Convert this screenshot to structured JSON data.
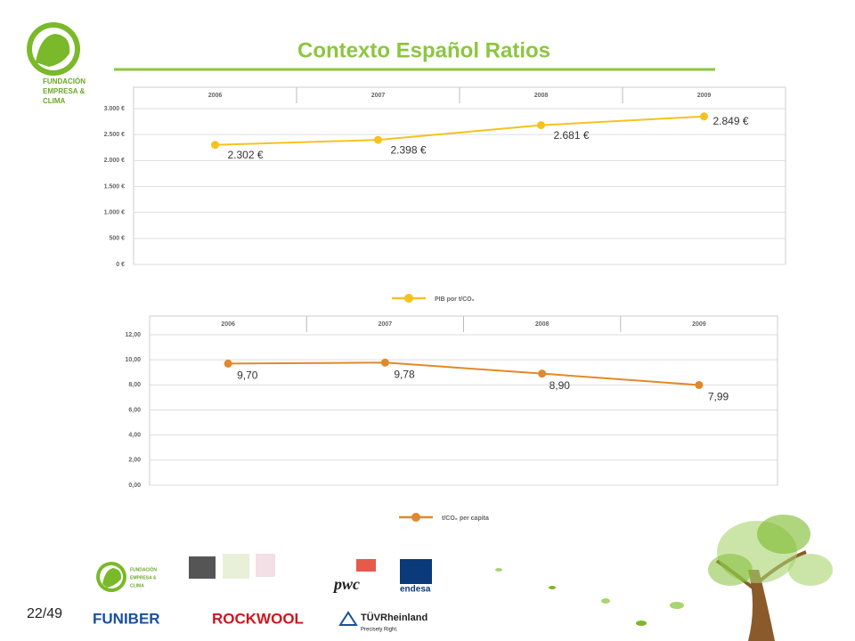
{
  "title": "Contexto Español Ratios",
  "page_number": "22/49",
  "logos": {
    "fundacion": [
      "FUNDACIÓN",
      "EMPRESA &",
      "CLIMA"
    ],
    "funiber": "FUNIBER",
    "rockwool": "ROCKWOOL",
    "pwc": "pwc",
    "endesa": "endesa",
    "tuv": "TÜVRheinland",
    "tuv_tagline": "Precisely Right."
  },
  "chart_data": [
    {
      "type": "line",
      "categories": [
        "2006",
        "2007",
        "2008",
        "2009"
      ],
      "series": [
        {
          "name": "PIB por t/CO₂",
          "color": "#f7c21e",
          "values": [
            2302,
            2398,
            2681,
            2849
          ],
          "value_labels": [
            "2.302 €",
            "2.398 €",
            "2.681 €",
            "2.849 €"
          ]
        }
      ],
      "ylim": [
        0,
        3000
      ],
      "yticks": [
        {
          "value": 0,
          "label": "0 €"
        },
        {
          "value": 500,
          "label": "500 €"
        },
        {
          "value": 1000,
          "label": "1.000 €"
        },
        {
          "value": 1500,
          "label": "1.500 €"
        },
        {
          "value": 2000,
          "label": "2.000 €"
        },
        {
          "value": 2500,
          "label": "2.500 €"
        },
        {
          "value": 3000,
          "label": "3.000 €"
        }
      ],
      "grid": true,
      "legend": "bottom"
    },
    {
      "type": "line",
      "categories": [
        "2006",
        "2007",
        "2008",
        "2009"
      ],
      "series": [
        {
          "name": "t/CO₂ per capita",
          "color": "#e0892b",
          "values": [
            9.7,
            9.78,
            8.9,
            7.99
          ],
          "value_labels": [
            "9,70",
            "9,78",
            "8,90",
            "7,99"
          ]
        }
      ],
      "ylim": [
        0,
        12
      ],
      "yticks": [
        {
          "value": 0,
          "label": "0,00"
        },
        {
          "value": 2,
          "label": "2,00"
        },
        {
          "value": 4,
          "label": "4,00"
        },
        {
          "value": 6,
          "label": "6,00"
        },
        {
          "value": 8,
          "label": "8,00"
        },
        {
          "value": 10,
          "label": "10,00"
        },
        {
          "value": 12,
          "label": "12,00"
        }
      ],
      "grid": true,
      "legend": "bottom"
    }
  ]
}
